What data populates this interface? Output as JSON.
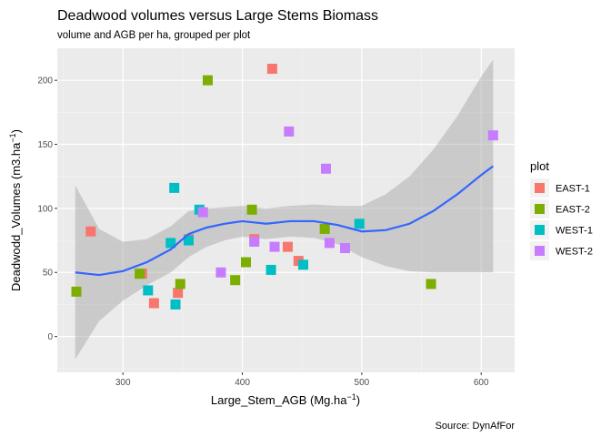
{
  "chart_data": {
    "type": "scatter",
    "title": "Deadwood volumes versus Large Stems Biomass",
    "subtitle": "volume and AGB per ha, grouped per plot",
    "caption": "Source: DynAfFor",
    "xlabel": "Large_Stem_AGB (Mg.ha",
    "xlabel_sup": "−1",
    "xlabel_end": ")",
    "ylabel": "Deadwodd_Volumes (m3.ha",
    "ylabel_sup": "−1",
    "ylabel_end": ")",
    "xlim": [
      245,
      628
    ],
    "ylim": [
      -28,
      225
    ],
    "xticks": [
      300,
      400,
      500,
      600
    ],
    "yticks": [
      0,
      50,
      100,
      150,
      200
    ],
    "grid": true,
    "legend": {
      "title": "plot",
      "position": "right"
    },
    "series": [
      {
        "name": "EAST-1",
        "color": "#F8766D",
        "points": [
          [
            273,
            82
          ],
          [
            316,
            49
          ],
          [
            326,
            26
          ],
          [
            346,
            34
          ],
          [
            355,
            76
          ],
          [
            410,
            76
          ],
          [
            425,
            209
          ],
          [
            438,
            70
          ],
          [
            447,
            59
          ]
        ]
      },
      {
        "name": "EAST-2",
        "color": "#7CAE00",
        "points": [
          [
            261,
            35
          ],
          [
            314,
            49
          ],
          [
            348,
            41
          ],
          [
            371,
            200
          ],
          [
            394,
            44
          ],
          [
            403,
            58
          ],
          [
            408,
            99
          ],
          [
            469,
            84
          ],
          [
            558,
            41
          ]
        ]
      },
      {
        "name": "WEST-1",
        "color": "#00BFC4",
        "points": [
          [
            321,
            36
          ],
          [
            340,
            73
          ],
          [
            343,
            116
          ],
          [
            344,
            25
          ],
          [
            355,
            75
          ],
          [
            364,
            99
          ],
          [
            424,
            52
          ],
          [
            451,
            56
          ],
          [
            498,
            88
          ]
        ]
      },
      {
        "name": "WEST-2",
        "color": "#C77CFF",
        "points": [
          [
            367,
            97
          ],
          [
            382,
            50
          ],
          [
            410,
            74
          ],
          [
            427,
            70
          ],
          [
            439,
            160
          ],
          [
            470,
            131
          ],
          [
            473,
            73
          ],
          [
            486,
            69
          ],
          [
            610,
            157
          ]
        ]
      }
    ],
    "smooth": {
      "color": "#3366FF",
      "x": [
        260,
        280,
        300,
        320,
        340,
        355,
        370,
        385,
        400,
        420,
        440,
        460,
        480,
        500,
        520,
        540,
        560,
        580,
        600,
        610
      ],
      "y": [
        50,
        48,
        51,
        58,
        68,
        80,
        85,
        88,
        90,
        88,
        90,
        90,
        87,
        82,
        83,
        88,
        98,
        111,
        126,
        133
      ],
      "lower": [
        -18,
        12,
        28,
        40,
        50,
        62,
        70,
        75,
        78,
        76,
        78,
        77,
        72,
        62,
        55,
        51,
        50,
        50,
        50,
        50
      ],
      "upper": [
        118,
        84,
        74,
        76,
        86,
        98,
        100,
        101,
        102,
        100,
        102,
        103,
        102,
        102,
        111,
        125,
        146,
        172,
        203,
        216
      ]
    }
  }
}
